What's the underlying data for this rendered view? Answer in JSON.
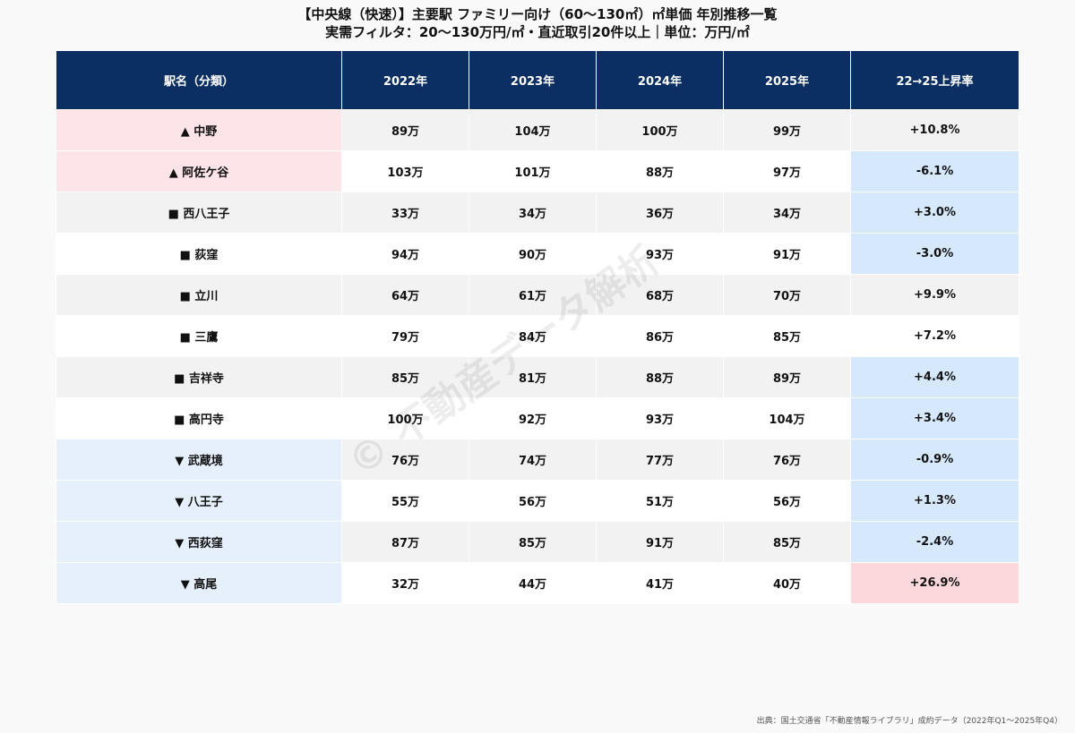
{
  "title_line1": "【中央線（快速）】主要駅 ファミリー向け（60〜130㎡）㎡単価 年別推移一覧",
  "title_line2": "実需フィルタ：20〜130万円/㎡・直近取引20件以上｜単位：万円/㎡",
  "headers": [
    "駅名（分類）",
    "2022年",
    "2023年",
    "2024年",
    "2025年",
    "22→25上昇率"
  ],
  "rows": [
    {
      "name": "▲ 中野",
      "v2022": "89万",
      "v2023": "104万",
      "v2024": "100万",
      "v2025": "99万",
      "rate": "+10.8%"
    },
    {
      "name": "▲ 阿佐ケ谷",
      "v2022": "103万",
      "v2023": "101万",
      "v2024": "88万",
      "v2025": "97万",
      "rate": "-6.1%"
    },
    {
      "name": "■ 西八王子",
      "v2022": "33万",
      "v2023": "34万",
      "v2024": "36万",
      "v2025": "34万",
      "rate": "+3.0%"
    },
    {
      "name": "■ 荻窪",
      "v2022": "94万",
      "v2023": "90万",
      "v2024": "93万",
      "v2025": "91万",
      "rate": "-3.0%"
    },
    {
      "name": "■ 立川",
      "v2022": "64万",
      "v2023": "61万",
      "v2024": "68万",
      "v2025": "70万",
      "rate": "+9.9%"
    },
    {
      "name": "■ 三鷹",
      "v2022": "79万",
      "v2023": "84万",
      "v2024": "86万",
      "v2025": "85万",
      "rate": "+7.2%"
    },
    {
      "name": "■ 吉祥寺",
      "v2022": "85万",
      "v2023": "81万",
      "v2024": "88万",
      "v2025": "89万",
      "rate": "+4.4%"
    },
    {
      "name": "■ 高円寺",
      "v2022": "100万",
      "v2023": "92万",
      "v2024": "93万",
      "v2025": "104万",
      "rate": "+3.4%"
    },
    {
      "name": "▼ 武蔵境",
      "v2022": "76万",
      "v2023": "74万",
      "v2024": "77万",
      "v2025": "76万",
      "rate": "-0.9%"
    },
    {
      "name": "▼ 八王子",
      "v2022": "55万",
      "v2023": "56万",
      "v2024": "51万",
      "v2025": "56万",
      "rate": "+1.3%"
    },
    {
      "name": "▼ 西荻窪",
      "v2022": "87万",
      "v2023": "85万",
      "v2024": "91万",
      "v2025": "85万",
      "rate": "-2.4%"
    },
    {
      "name": "▼ 高尾",
      "v2022": "32万",
      "v2023": "44万",
      "v2024": "41万",
      "v2025": "40万",
      "rate": "+26.9%"
    }
  ],
  "watermark": "© 不動産データ解析",
  "source": "出典：国土交通省「不動産情報ライブラリ」成約データ（2022年Q1〜2025年Q4）",
  "colors": {
    "header_bg": "#0b2e63",
    "up_row": "#fde4e8",
    "down_row": "#e6f0fc",
    "rate_blue": "#d6e8fb",
    "rate_red": "#fcd8dc"
  }
}
